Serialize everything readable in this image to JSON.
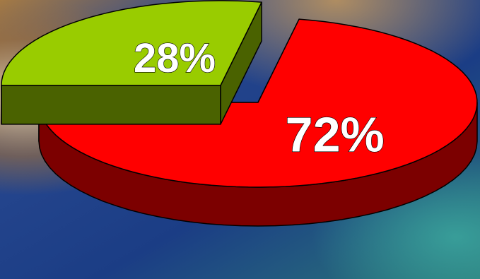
{
  "chart_data": {
    "type": "pie",
    "slices": [
      {
        "label": "72%",
        "value": 72,
        "color": "#ff0000",
        "side_color": "#7c0000",
        "exploded": false
      },
      {
        "label": "28%",
        "value": 28,
        "color": "#99cc00",
        "side_color": "#4a6200",
        "exploded": true
      }
    ],
    "style": "3d-exploded",
    "legend": "none"
  },
  "colors": {
    "background_blue": "#1c3f86",
    "background_teal": "#2f7f7a",
    "background_tan": "#b28a52"
  }
}
